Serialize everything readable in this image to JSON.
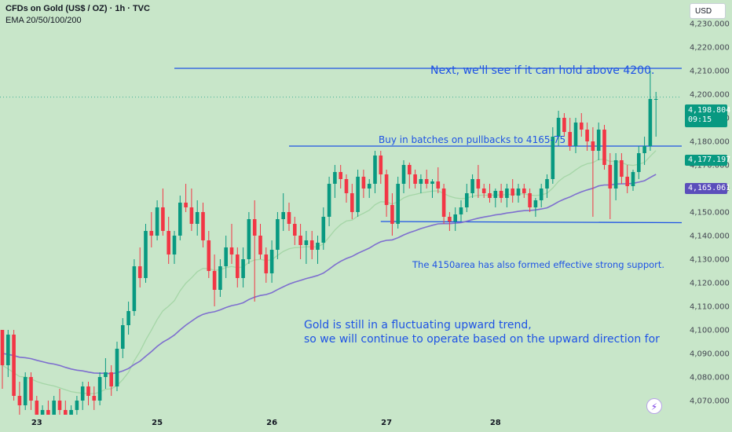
{
  "header": {
    "title": "CFDs on Gold (US$ / OZ) · 1h · TVC",
    "indicator": "EMA 20/50/100/200"
  },
  "currency_button": "USD",
  "notes": {
    "next": "Next, we'll see if it can hold above 4200.",
    "buy": "Buy in batches on pullbacks to 4165-75",
    "support": "The 4150area has also formed effective strong support.",
    "trend_line1": "Gold is still in a fluctuating upward trend,",
    "trend_line2": "so we will continue to operate based on the upward direction for"
  },
  "price_tags": {
    "last_price": "4,198.804",
    "countdown": "09:15",
    "ema_fast": "4,177.197",
    "ema_slow": "4,165.061"
  },
  "colors": {
    "background": "#c8e6c9",
    "up": "#089981",
    "down": "#f23645",
    "annotation": "#1e53e5",
    "ema_fast": "#a5d6a7",
    "ema_slow": "#7e6fcf"
  },
  "chart_data": {
    "type": "candlestick",
    "title": "CFDs on Gold (US$ / OZ) · 1h · TVC",
    "y_axis": {
      "ticks": [
        4070,
        4080,
        4090,
        4100,
        4110,
        4120,
        4130,
        4140,
        4150,
        4160,
        4170,
        4180,
        4190,
        4200,
        4210,
        4220,
        4230
      ],
      "tick_labels": [
        "4,070.000",
        "4,080.000",
        "4,090.000",
        "4,100.000",
        "4,110.000",
        "4,120.000",
        "4,130.000",
        "4,140.000",
        "4,150.000",
        "4,160.000",
        "4,170.000",
        "4,180.000",
        "4,190.000",
        "4,200.000",
        "4,210.000",
        "4,220.000",
        "4,230.000"
      ],
      "range": [
        4064,
        4240
      ]
    },
    "x_axis": {
      "labels": [
        {
          "label": "23",
          "bar": 6
        },
        {
          "label": "25",
          "bar": 27
        },
        {
          "label": "26",
          "bar": 47
        },
        {
          "label": "27",
          "bar": 67
        },
        {
          "label": "28",
          "bar": 86
        }
      ]
    },
    "candles": [
      [
        4100,
        4100,
        4075,
        4085
      ],
      [
        4085,
        4100,
        4080,
        4098
      ],
      [
        4098,
        4100,
        4070,
        4072
      ],
      [
        4072,
        4078,
        4060,
        4068
      ],
      [
        4068,
        4082,
        4066,
        4080
      ],
      [
        4080,
        4082,
        4066,
        4070
      ],
      [
        4070,
        4072,
        4060,
        4062
      ],
      [
        4062,
        4068,
        4058,
        4066
      ],
      [
        4066,
        4070,
        4060,
        4064
      ],
      [
        4064,
        4072,
        4062,
        4070
      ],
      [
        4070,
        4075,
        4064,
        4066
      ],
      [
        4066,
        4070,
        4060,
        4062
      ],
      [
        4062,
        4068,
        4058,
        4066
      ],
      [
        4066,
        4072,
        4062,
        4070
      ],
      [
        4070,
        4078,
        4066,
        4076
      ],
      [
        4076,
        4078,
        4068,
        4072
      ],
      [
        4072,
        4076,
        4066,
        4070
      ],
      [
        4070,
        4082,
        4068,
        4080
      ],
      [
        4080,
        4088,
        4075,
        4082
      ],
      [
        4082,
        4085,
        4072,
        4076
      ],
      [
        4076,
        4095,
        4074,
        4092
      ],
      [
        4092,
        4105,
        4088,
        4102
      ],
      [
        4102,
        4112,
        4098,
        4108
      ],
      [
        4108,
        4130,
        4106,
        4127
      ],
      [
        4127,
        4135,
        4118,
        4122
      ],
      [
        4122,
        4145,
        4120,
        4142
      ],
      [
        4142,
        4150,
        4135,
        4140
      ],
      [
        4140,
        4155,
        4138,
        4152
      ],
      [
        4152,
        4160,
        4140,
        4142
      ],
      [
        4142,
        4148,
        4128,
        4132
      ],
      [
        4132,
        4142,
        4128,
        4140
      ],
      [
        4140,
        4157,
        4138,
        4154
      ],
      [
        4154,
        4162,
        4150,
        4152
      ],
      [
        4152,
        4160,
        4142,
        4145
      ],
      [
        4145,
        4155,
        4140,
        4150
      ],
      [
        4150,
        4154,
        4135,
        4138
      ],
      [
        4138,
        4142,
        4122,
        4125
      ],
      [
        4125,
        4132,
        4110,
        4117
      ],
      [
        4117,
        4130,
        4114,
        4127
      ],
      [
        4127,
        4140,
        4122,
        4135
      ],
      [
        4135,
        4145,
        4128,
        4132
      ],
      [
        4132,
        4135,
        4118,
        4122
      ],
      [
        4122,
        4135,
        4118,
        4130
      ],
      [
        4130,
        4150,
        4128,
        4147
      ],
      [
        4147,
        4155,
        4112,
        4140
      ],
      [
        4140,
        4145,
        4130,
        4132
      ],
      [
        4132,
        4135,
        4120,
        4124
      ],
      [
        4124,
        4138,
        4120,
        4134
      ],
      [
        4134,
        4150,
        4130,
        4147
      ],
      [
        4147,
        4158,
        4142,
        4150
      ],
      [
        4150,
        4154,
        4142,
        4145
      ],
      [
        4145,
        4148,
        4136,
        4140
      ],
      [
        4140,
        4145,
        4130,
        4136
      ],
      [
        4136,
        4142,
        4128,
        4138
      ],
      [
        4138,
        4142,
        4130,
        4134
      ],
      [
        4134,
        4140,
        4128,
        4137
      ],
      [
        4137,
        4152,
        4134,
        4148
      ],
      [
        4148,
        4165,
        4144,
        4162
      ],
      [
        4162,
        4170,
        4156,
        4167
      ],
      [
        4167,
        4170,
        4160,
        4164
      ],
      [
        4164,
        4166,
        4154,
        4158
      ],
      [
        4158,
        4162,
        4147,
        4150
      ],
      [
        4150,
        4168,
        4148,
        4165
      ],
      [
        4165,
        4168,
        4156,
        4160
      ],
      [
        4160,
        4164,
        4156,
        4162
      ],
      [
        4162,
        4176,
        4158,
        4174
      ],
      [
        4174,
        4176,
        4162,
        4166
      ],
      [
        4166,
        4168,
        4148,
        4153
      ],
      [
        4153,
        4158,
        4140,
        4145
      ],
      [
        4145,
        4165,
        4143,
        4162
      ],
      [
        4162,
        4172,
        4158,
        4170
      ],
      [
        4170,
        4171,
        4160,
        4166
      ],
      [
        4166,
        4168,
        4160,
        4162
      ],
      [
        4162,
        4166,
        4158,
        4164
      ],
      [
        4164,
        4168,
        4160,
        4162
      ],
      [
        4162,
        4164,
        4156,
        4163
      ],
      [
        4163,
        4169,
        4158,
        4160
      ],
      [
        4160,
        4162,
        4145,
        4148
      ],
      [
        4148,
        4150,
        4142,
        4146
      ],
      [
        4146,
        4152,
        4142,
        4149
      ],
      [
        4149,
        4155,
        4146,
        4152
      ],
      [
        4152,
        4162,
        4150,
        4158
      ],
      [
        4158,
        4166,
        4156,
        4164
      ],
      [
        4164,
        4170,
        4156,
        4160
      ],
      [
        4160,
        4162,
        4156,
        4158
      ],
      [
        4158,
        4162,
        4154,
        4156
      ],
      [
        4156,
        4160,
        4152,
        4159
      ],
      [
        4159,
        4162,
        4154,
        4156
      ],
      [
        4156,
        4162,
        4152,
        4160
      ],
      [
        4160,
        4164,
        4154,
        4157
      ],
      [
        4157,
        4162,
        4154,
        4160
      ],
      [
        4160,
        4162,
        4156,
        4158
      ],
      [
        4158,
        4160,
        4150,
        4152
      ],
      [
        4152,
        4156,
        4148,
        4155
      ],
      [
        4155,
        4162,
        4152,
        4160
      ],
      [
        4160,
        4166,
        4156,
        4164
      ],
      [
        4164,
        4186,
        4162,
        4182
      ],
      [
        4182,
        4193,
        4178,
        4190
      ],
      [
        4190,
        4192,
        4182,
        4184
      ],
      [
        4184,
        4190,
        4176,
        4178
      ],
      [
        4178,
        4190,
        4175,
        4188
      ],
      [
        4188,
        4192,
        4182,
        4185
      ],
      [
        4185,
        4188,
        4176,
        4180
      ],
      [
        4180,
        4186,
        4148,
        4176
      ],
      [
        4176,
        4188,
        4172,
        4185
      ],
      [
        4185,
        4187,
        4168,
        4170
      ],
      [
        4170,
        4175,
        4147,
        4160
      ],
      [
        4160,
        4175,
        4155,
        4172
      ],
      [
        4172,
        4175,
        4162,
        4165
      ],
      [
        4165,
        4170,
        4158,
        4161
      ],
      [
        4161,
        4168,
        4159,
        4167
      ],
      [
        4167,
        4178,
        4164,
        4175
      ],
      [
        4175,
        4182,
        4170,
        4178
      ],
      [
        4178,
        4210,
        4176,
        4198
      ],
      [
        4198,
        4201,
        4182,
        4198
      ]
    ],
    "series": [
      {
        "name": "EMA 20",
        "values": [
          4085,
          4083.5,
          4081.8,
          4080.2,
          4080,
          4079.2,
          4078.1,
          4077.3,
          4076.7,
          4076.2,
          4075.4,
          4074.6,
          4073.8,
          4073.4,
          4073.1,
          4073,
          4072.9,
          4073.6,
          4074.8,
          4075,
          4076.4,
          4078.9,
          4082,
          4086.9,
          4090.8,
          4095.7,
          4099.9,
          4104.4,
          4108.1,
          4110.1,
          4112.4,
          4116.6,
          4119.8,
          4122.1,
          4124.7,
          4126.1,
          4126,
          4125.3,
          4125.5,
          4126.4,
          4126.9,
          4126.4,
          4126.7,
          4128.7,
          4129.7,
          4129.9,
          4129.4,
          4129.8,
          4131.6,
          4133.3,
          4134.4,
          4134.9,
          4135,
          4135.3,
          4135.2,
          4135.3,
          4136.5,
          4139.4,
          4142.4,
          4144.7,
          4146.2,
          4146.6,
          4148.3,
          4149.5,
          4150.8,
          4153.1,
          4154.4,
          4154.3,
          4153.4,
          4154.4,
          4156,
          4157,
          4157.5,
          4158.1,
          4158.5,
          4158.9,
          4159,
          4157.9,
          4156.7,
          4156,
          4155.7,
          4155.9,
          4156.7,
          4157.1,
          4157.2,
          4157.1,
          4157.3,
          4157.2,
          4157.5,
          4157.5,
          4157.7,
          4157.7,
          4157.2,
          4157,
          4157.3,
          4158,
          4160.2,
          4163,
          4164.9,
          4166.1,
          4167.9,
          4169.5,
          4170.5,
          4171,
          4172.3,
          4172.4,
          4171.5,
          4171.6,
          4171,
          4170.1,
          4169.8,
          4170.3,
          4171.1,
          4173.7,
          4176.1
        ]
      },
      {
        "name": "EMA 50",
        "values": [
          4090,
          4089.6,
          4089.1,
          4088.4,
          4088.2,
          4087.8,
          4087.1,
          4086.5,
          4085.9,
          4085.5,
          4084.9,
          4084.1,
          4083.4,
          4082.9,
          4082.6,
          4082.1,
          4081.7,
          4081.6,
          4081.6,
          4081.4,
          4081.8,
          4082.6,
          4083.6,
          4085.3,
          4086.7,
          4088.8,
          4090.8,
          4093,
          4094.8,
          4096.2,
          4097.8,
          4100,
          4102,
          4103.7,
          4105.4,
          4106.6,
          4107.3,
          4107.7,
          4108.5,
          4109.5,
          4110.3,
          4110.8,
          4111.5,
          4112.9,
          4113.9,
          4114.6,
          4115,
          4115.8,
          4117.1,
          4118.3,
          4119.4,
          4120.3,
          4121,
          4121.8,
          4122.4,
          4123.1,
          4124.1,
          4125.8,
          4127.6,
          4129.1,
          4130.3,
          4131.2,
          4132.5,
          4133.6,
          4134.7,
          4136.2,
          4137.4,
          4138,
          4138.2,
          4139.1,
          4140.3,
          4141.3,
          4142.1,
          4143,
          4143.7,
          4144.4,
          4145,
          4145.1,
          4145.1,
          4145.3,
          4145.5,
          4146.1,
          4146.8,
          4147.4,
          4147.9,
          4148.3,
          4148.8,
          4149.1,
          4149.6,
          4149.9,
          4150.3,
          4150.6,
          4150.7,
          4150.9,
          4151.3,
          4151.8,
          4153,
          4154.4,
          4155.5,
          4156.4,
          4157.6,
          4158.6,
          4159.4,
          4160.1,
          4161.1,
          4161.5,
          4161.5,
          4161.9,
          4162,
          4162,
          4162.2,
          4162.7,
          4163.3,
          4164.7,
          4166
        ]
      }
    ],
    "horizontal_lines": [
      {
        "value": 4211,
        "start_bar": 30
      },
      {
        "value": 4178,
        "start_bar": 50
      },
      {
        "value": 4146,
        "start_bar": 66,
        "end_value": 4145.5
      }
    ]
  }
}
